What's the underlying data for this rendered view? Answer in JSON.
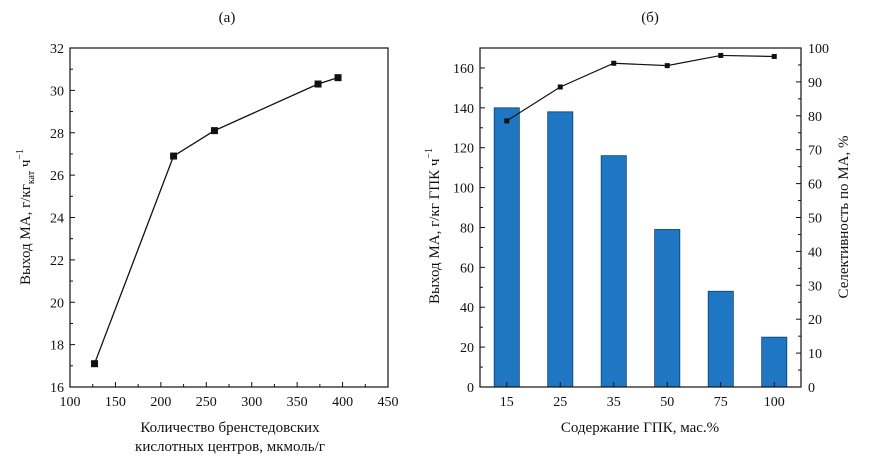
{
  "chart_data": [
    {
      "type": "line",
      "panel_label": "(а)",
      "xlabel_lines": [
        "Количество бренстедовских",
        "кислотных центров, мкмоль/г"
      ],
      "ylabel": {
        "main": "Выход МА, г/кг",
        "sub": "кат",
        "tail": " ч",
        "sup": "−1"
      },
      "xlim": [
        100,
        450
      ],
      "ylim": [
        16,
        32
      ],
      "x_ticks": [
        "100",
        "150",
        "200",
        "250",
        "300",
        "350",
        "400",
        "450"
      ],
      "y_ticks": [
        "16",
        "18",
        "20",
        "22",
        "24",
        "26",
        "28",
        "30",
        "32"
      ],
      "x_tick_values": [
        100,
        150,
        200,
        250,
        300,
        350,
        400,
        450
      ],
      "y_tick_values": [
        16,
        18,
        20,
        22,
        24,
        26,
        28,
        30,
        32
      ],
      "series": [
        {
          "name": "Выход МА",
          "x": [
            127,
            214,
            259,
            373,
            395
          ],
          "y": [
            17.1,
            26.9,
            28.1,
            30.3,
            30.6
          ],
          "color": "#111111"
        }
      ]
    },
    {
      "type": "bar",
      "panel_label": "(б)",
      "xlabel": "Содержание ГПК, мас.%",
      "ylabel_left": "Выход МА, г/кг ГПК ч",
      "ylabel_left_sup": "−1",
      "ylabel_right": "Селективность по МА, %",
      "categories": [
        "15",
        "25",
        "35",
        "50",
        "75",
        "100"
      ],
      "ylim_left": [
        0,
        170
      ],
      "ylim_right": [
        0,
        100
      ],
      "y_left_ticks": [
        "0",
        "20",
        "40",
        "60",
        "80",
        "100",
        "120",
        "140",
        "160"
      ],
      "y_left_tick_values": [
        0,
        20,
        40,
        60,
        80,
        100,
        120,
        140,
        160
      ],
      "y_right_ticks": [
        "0",
        "10",
        "20",
        "30",
        "40",
        "50",
        "60",
        "70",
        "80",
        "90",
        "100"
      ],
      "y_right_tick_values": [
        0,
        10,
        20,
        30,
        40,
        50,
        60,
        70,
        80,
        90,
        100
      ],
      "series": [
        {
          "name": "Выход МА",
          "axis": "left",
          "kind": "bar",
          "values": [
            140,
            138,
            116,
            79,
            48,
            25
          ],
          "color": "#1f77c4"
        },
        {
          "name": "Селективность по МА",
          "axis": "right",
          "kind": "line",
          "values": [
            78.5,
            88.5,
            95.5,
            94.8,
            97.8,
            97.5
          ],
          "color": "#111111"
        }
      ]
    }
  ]
}
